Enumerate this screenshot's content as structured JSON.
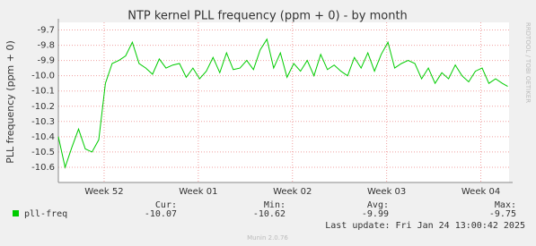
{
  "chart_data": {
    "type": "line",
    "title": "NTP kernel PLL frequency (ppm + 0) - by month",
    "y_label": "PLL frequency (ppm + 0)",
    "side_text": "RRDTOOL / TOBI OETIKER",
    "x": [
      0,
      0.5,
      1,
      1.5,
      2,
      2.5,
      3,
      3.5,
      4,
      4.5,
      5,
      5.5,
      6,
      6.5,
      7,
      7.5,
      8,
      8.5,
      9,
      9.5,
      10,
      10.5,
      11,
      11.5,
      12,
      12.5,
      13,
      13.5,
      14,
      14.5,
      15,
      15.5,
      16,
      16.5,
      17,
      17.5,
      18,
      18.5,
      19,
      19.5,
      20,
      20.5,
      21,
      21.5,
      22,
      22.5,
      23,
      23.5,
      24,
      24.5,
      25,
      25.5,
      26,
      26.5,
      27,
      27.5,
      28,
      28.5,
      29,
      29.5,
      30,
      30.5,
      31,
      31.5,
      32,
      32.5,
      33,
      33.4
    ],
    "series": [
      {
        "name": "pll-freq",
        "color": "#00cc00",
        "values": [
          -10.4,
          -10.6,
          -10.47,
          -10.35,
          -10.48,
          -10.5,
          -10.42,
          -10.05,
          -9.92,
          -9.9,
          -9.87,
          -9.78,
          -9.92,
          -9.95,
          -9.99,
          -9.89,
          -9.95,
          -9.93,
          -9.92,
          -10.01,
          -9.95,
          -10.02,
          -9.97,
          -9.88,
          -9.98,
          -9.85,
          -9.96,
          -9.95,
          -9.9,
          -9.96,
          -9.83,
          -9.76,
          -9.95,
          -9.85,
          -10.01,
          -9.92,
          -9.97,
          -9.9,
          -10.0,
          -9.86,
          -9.96,
          -9.93,
          -9.97,
          -10.0,
          -9.88,
          -9.95,
          -9.85,
          -9.97,
          -9.86,
          -9.78,
          -9.95,
          -9.92,
          -9.9,
          -9.92,
          -10.02,
          -9.95,
          -10.05,
          -9.98,
          -10.02,
          -9.93,
          -10.0,
          -10.04,
          -9.97,
          -9.95,
          -10.05,
          -10.02,
          -10.05,
          -10.07
        ],
        "stats": [
          {
            "label": "Cur:",
            "value": -10.07
          },
          {
            "label": "Min:",
            "value": -10.62
          },
          {
            "label": "Avg:",
            "value": -9.99
          },
          {
            "label": "Max:",
            "value": -9.75
          }
        ]
      }
    ],
    "xlim": [
      0,
      33.5
    ],
    "xticks": [
      {
        "value": 3.4,
        "label": "Week 52"
      },
      {
        "value": 10.4,
        "label": "Week 01"
      },
      {
        "value": 17.4,
        "label": "Week 02"
      },
      {
        "value": 24.4,
        "label": "Week 03"
      },
      {
        "value": 31.4,
        "label": "Week 04"
      }
    ],
    "ylim": [
      -10.7,
      -9.65
    ],
    "yticks": [
      -9.7,
      -9.8,
      -9.9,
      {
        "value": -10,
        "label": "-10.0"
      },
      -10.1,
      -10.2,
      -10.3,
      -10.4,
      -10.5,
      -10.6
    ],
    "grid": true,
    "last_update": "Last update: Fri Jan 24 13:00:42 2025",
    "footer": "Munin 2.0.76"
  }
}
